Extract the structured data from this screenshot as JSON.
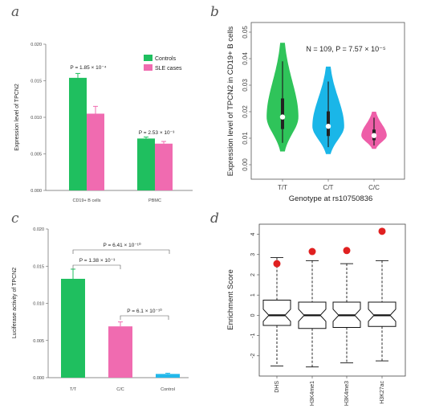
{
  "panels": {
    "a": {
      "label": "a"
    },
    "b": {
      "label": "b"
    },
    "c": {
      "label": "c"
    },
    "d": {
      "label": "d"
    }
  },
  "chart_data": [
    {
      "panel": "a",
      "type": "bar",
      "ylabel": "Expression level of TPCN2",
      "ylim": [
        0,
        0.02
      ],
      "yticks": [
        "0.000",
        "0.005",
        "0.010",
        "0.015",
        "0.020"
      ],
      "categories": [
        "CD19+ B cells",
        "PBMC"
      ],
      "series": [
        {
          "name": "Controls",
          "color": "#1fbf5f",
          "values": [
            0.0154,
            0.0071
          ],
          "errors": [
            0.0006,
            0.0002
          ]
        },
        {
          "name": "SLE cases",
          "color": "#f06bb0",
          "values": [
            0.0105,
            0.0064
          ],
          "errors": [
            0.001,
            0.0003
          ]
        }
      ],
      "annotations": [
        "P = 1.85 × 10⁻⁴",
        "P = 2.53 × 10⁻³"
      ],
      "legend": "top-right"
    },
    {
      "panel": "b",
      "type": "violin",
      "xlabel": "Genotype at rs10750836",
      "ylabel": "Expression level of TPCN2 in CD19+ B cells",
      "ylim": [
        0,
        0.05
      ],
      "yticks": [
        "0.00",
        "0.01",
        "0.02",
        "0.03",
        "0.04",
        "0.05"
      ],
      "categories": [
        "T/T",
        "C/T",
        "C/C"
      ],
      "colors": [
        "#2fc45a",
        "#1ab6e8",
        "#ee5ea8"
      ],
      "medians": [
        0.018,
        0.0145,
        0.011
      ],
      "ranges": [
        [
          0.005,
          0.046
        ],
        [
          0.004,
          0.037
        ],
        [
          0.006,
          0.02
        ]
      ],
      "annotation": "N = 109, P = 7.57 × 10⁻⁵"
    },
    {
      "panel": "c",
      "type": "bar",
      "ylabel": "Luciferase activity of TPCN2",
      "ylim": [
        0,
        0.02
      ],
      "yticks": [
        "0.000",
        "0.005",
        "0.010",
        "0.015",
        "0.020"
      ],
      "categories": [
        "T/T",
        "C/C",
        "Control"
      ],
      "values": [
        0.0133,
        0.0069,
        0.0005
      ],
      "errors": [
        0.0013,
        0.0006,
        0.0001
      ],
      "colors": [
        "#1fbf5f",
        "#f06bb0",
        "#22b8ea"
      ],
      "annotations": [
        "P = 6.41 × 10⁻¹⁰",
        "P = 1.38 × 10⁻³",
        "P = 6.1 × 10⁻¹⁰"
      ]
    },
    {
      "panel": "d",
      "type": "boxplot",
      "ylabel": "Enrichment Score",
      "ylim": [
        -3,
        4.5
      ],
      "yticks": [
        "-2",
        "-1",
        "0",
        "1",
        "2",
        "3",
        "4"
      ],
      "categories": [
        "DHS",
        "H3K4me1",
        "H3K4me3",
        "H3K27ac"
      ],
      "whisker_low": [
        -2.5,
        -2.55,
        -2.35,
        -2.25
      ],
      "q1": [
        -0.5,
        -0.65,
        -0.6,
        -0.55
      ],
      "median": [
        0.0,
        0.0,
        0.0,
        0.0
      ],
      "q3": [
        0.75,
        0.65,
        0.65,
        0.65
      ],
      "whisker_high": [
        2.85,
        2.7,
        2.55,
        2.7
      ],
      "highlight": [
        2.55,
        3.15,
        3.2,
        4.15
      ],
      "highlight_color": "#e02020"
    }
  ]
}
